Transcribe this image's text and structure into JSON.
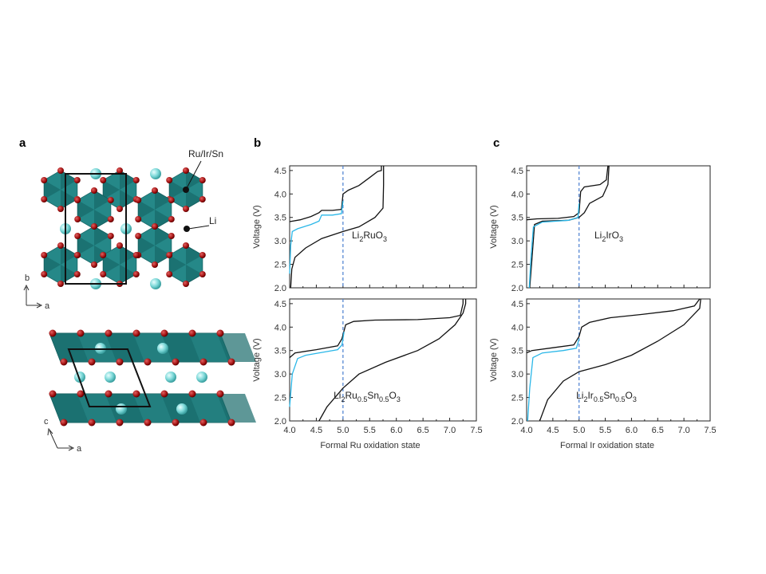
{
  "panels": {
    "a": {
      "label": "a",
      "atom_label_metal": "Ru/Ir/Sn",
      "atom_label_li": "Li",
      "axes_top": {
        "vertical": "b",
        "horizontal": "a"
      },
      "axes_bottom": {
        "vertical": "c",
        "horizontal": "a"
      }
    },
    "b": {
      "label": "b",
      "xlabel": "Formal Ru oxidation state"
    },
    "c": {
      "label": "c",
      "xlabel": "Formal Ir oxidation state"
    }
  },
  "colors": {
    "octahedron": "#1f7f7f",
    "octahedron_dark": "#155f5f",
    "li": "#79d6d6",
    "oxygen": "#a01010",
    "cyan_curve": "#2ab7e8",
    "dashed": "#4a7fd0"
  },
  "chart_data": [
    {
      "type": "line",
      "panel": "b",
      "subplot": "top",
      "title": "Li2RuO3",
      "compound": {
        "base": "Li",
        "sub1": "2",
        "mid": "RuO",
        "sub2": "3"
      },
      "ylabel": "Voltage (V)",
      "xlim": [
        4.0,
        7.5
      ],
      "ylim": [
        2.0,
        4.6
      ],
      "yticks": [
        2.0,
        2.5,
        3.0,
        3.5,
        4.0,
        4.5
      ],
      "vline_x": 5.0,
      "series": [
        {
          "color": "#111111",
          "points": [
            [
              4.0,
              3.41
            ],
            [
              4.2,
              3.45
            ],
            [
              4.4,
              3.52
            ],
            [
              4.55,
              3.6
            ],
            [
              4.6,
              3.65
            ],
            [
              4.8,
              3.65
            ],
            [
              4.97,
              3.67
            ],
            [
              5.0,
              4.0
            ],
            [
              5.1,
              4.08
            ],
            [
              5.3,
              4.18
            ],
            [
              5.5,
              4.35
            ],
            [
              5.65,
              4.48
            ],
            [
              5.72,
              4.5
            ],
            [
              5.72,
              4.6
            ]
          ]
        },
        {
          "color": "#111111",
          "points": [
            [
              4.02,
              2.0
            ],
            [
              4.04,
              2.4
            ],
            [
              4.1,
              2.65
            ],
            [
              4.3,
              2.85
            ],
            [
              4.6,
              3.05
            ],
            [
              5.0,
              3.2
            ],
            [
              5.3,
              3.3
            ],
            [
              5.6,
              3.5
            ],
            [
              5.75,
              3.7
            ],
            [
              5.76,
              4.2
            ],
            [
              5.76,
              4.6
            ]
          ]
        },
        {
          "color": "#2ab7e8",
          "points": [
            [
              4.0,
              2.3
            ],
            [
              4.02,
              2.9
            ],
            [
              4.05,
              3.2
            ],
            [
              4.15,
              3.26
            ],
            [
              4.4,
              3.35
            ],
            [
              4.55,
              3.42
            ],
            [
              4.6,
              3.55
            ],
            [
              4.8,
              3.55
            ],
            [
              4.97,
              3.58
            ],
            [
              5.0,
              3.85
            ]
          ]
        }
      ]
    },
    {
      "type": "line",
      "panel": "b",
      "subplot": "bottom",
      "title": "Li2Ru0.5Sn0.5O3",
      "compound": {
        "base": "Li",
        "sub1": "2",
        "mid": "Ru",
        "sub2": "0.5",
        "mid2": "Sn",
        "sub3": "0.5",
        "end": "O",
        "sub4": "3"
      },
      "ylabel": "Voltage (V)",
      "xlabel": "Formal Ru oxidation state",
      "xlim": [
        4.0,
        7.5
      ],
      "ylim": [
        2.0,
        4.6
      ],
      "xticks": [
        4.0,
        4.5,
        5.0,
        5.5,
        6.0,
        6.5,
        7.0,
        7.5
      ],
      "yticks": [
        2.0,
        2.5,
        3.0,
        3.5,
        4.0,
        4.5
      ],
      "vline_x": 5.0,
      "series": [
        {
          "color": "#111111",
          "points": [
            [
              4.0,
              3.35
            ],
            [
              4.1,
              3.45
            ],
            [
              4.5,
              3.52
            ],
            [
              4.9,
              3.6
            ],
            [
              4.98,
              3.75
            ],
            [
              5.05,
              4.05
            ],
            [
              5.2,
              4.12
            ],
            [
              5.6,
              4.15
            ],
            [
              6.4,
              4.16
            ],
            [
              7.0,
              4.2
            ],
            [
              7.2,
              4.25
            ],
            [
              7.25,
              4.5
            ],
            [
              7.25,
              4.6
            ]
          ]
        },
        {
          "color": "#111111",
          "points": [
            [
              4.55,
              2.0
            ],
            [
              4.7,
              2.3
            ],
            [
              5.0,
              2.7
            ],
            [
              5.3,
              3.0
            ],
            [
              5.8,
              3.25
            ],
            [
              6.4,
              3.5
            ],
            [
              6.8,
              3.75
            ],
            [
              7.1,
              4.05
            ],
            [
              7.25,
              4.3
            ],
            [
              7.3,
              4.5
            ],
            [
              7.3,
              4.6
            ]
          ]
        },
        {
          "color": "#2ab7e8",
          "points": [
            [
              4.0,
              2.3
            ],
            [
              4.05,
              3.0
            ],
            [
              4.15,
              3.33
            ],
            [
              4.3,
              3.4
            ],
            [
              4.6,
              3.46
            ],
            [
              4.9,
              3.52
            ],
            [
              4.98,
              3.62
            ],
            [
              5.02,
              3.9
            ]
          ]
        }
      ]
    },
    {
      "type": "line",
      "panel": "c",
      "subplot": "top",
      "title": "Li2IrO3",
      "compound": {
        "base": "Li",
        "sub1": "2",
        "mid": "IrO",
        "sub2": "3"
      },
      "ylabel": "Voltage (V)",
      "xlim": [
        4.0,
        7.5
      ],
      "ylim": [
        2.0,
        4.6
      ],
      "yticks": [
        2.0,
        2.5,
        3.0,
        3.5,
        4.0,
        4.5
      ],
      "vline_x": 5.0,
      "series": [
        {
          "color": "#111111",
          "points": [
            [
              4.0,
              3.45
            ],
            [
              4.2,
              3.47
            ],
            [
              4.6,
              3.48
            ],
            [
              4.9,
              3.52
            ],
            [
              5.0,
              3.6
            ],
            [
              5.03,
              4.05
            ],
            [
              5.1,
              4.15
            ],
            [
              5.4,
              4.2
            ],
            [
              5.52,
              4.3
            ],
            [
              5.55,
              4.6
            ]
          ]
        },
        {
          "color": "#111111",
          "points": [
            [
              4.06,
              2.0
            ],
            [
              4.1,
              2.6
            ],
            [
              4.15,
              3.35
            ],
            [
              4.3,
              3.42
            ],
            [
              4.8,
              3.44
            ],
            [
              5.0,
              3.5
            ],
            [
              5.1,
              3.6
            ],
            [
              5.2,
              3.8
            ],
            [
              5.45,
              3.95
            ],
            [
              5.55,
              4.2
            ],
            [
              5.57,
              4.6
            ]
          ]
        },
        {
          "color": "#2ab7e8",
          "points": [
            [
              4.05,
              2.0
            ],
            [
              4.08,
              2.6
            ],
            [
              4.13,
              3.3
            ],
            [
              4.3,
              3.4
            ],
            [
              4.8,
              3.44
            ],
            [
              4.98,
              3.5
            ],
            [
              5.0,
              3.8
            ]
          ]
        }
      ]
    },
    {
      "type": "line",
      "panel": "c",
      "subplot": "bottom",
      "title": "Li2Ir0.5Sn0.5O3",
      "compound": {
        "base": "Li",
        "sub1": "2",
        "mid": "Ir",
        "sub2": "0.5",
        "mid2": "Sn",
        "sub3": "0.5",
        "end": "O",
        "sub4": "3"
      },
      "ylabel": "Voltage (V)",
      "xlabel": "Formal Ir oxidation state",
      "xlim": [
        4.0,
        7.5
      ],
      "ylim": [
        2.0,
        4.6
      ],
      "xticks": [
        4.0,
        4.5,
        5.0,
        5.5,
        6.0,
        6.5,
        7.0,
        7.5
      ],
      "yticks": [
        2.0,
        2.5,
        3.0,
        3.5,
        4.0,
        4.5
      ],
      "vline_x": 5.0,
      "series": [
        {
          "color": "#111111",
          "points": [
            [
              4.0,
              3.45
            ],
            [
              4.1,
              3.5
            ],
            [
              4.5,
              3.56
            ],
            [
              4.9,
              3.62
            ],
            [
              5.0,
              3.8
            ],
            [
              5.05,
              4.0
            ],
            [
              5.2,
              4.1
            ],
            [
              5.6,
              4.2
            ],
            [
              6.2,
              4.27
            ],
            [
              6.8,
              4.35
            ],
            [
              7.2,
              4.45
            ],
            [
              7.3,
              4.6
            ]
          ]
        },
        {
          "color": "#111111",
          "points": [
            [
              4.25,
              2.0
            ],
            [
              4.4,
              2.45
            ],
            [
              4.7,
              2.85
            ],
            [
              5.0,
              3.05
            ],
            [
              5.5,
              3.2
            ],
            [
              6.0,
              3.4
            ],
            [
              6.5,
              3.7
            ],
            [
              7.0,
              4.05
            ],
            [
              7.3,
              4.4
            ],
            [
              7.32,
              4.6
            ]
          ]
        },
        {
          "color": "#2ab7e8",
          "points": [
            [
              4.02,
              2.0
            ],
            [
              4.06,
              2.7
            ],
            [
              4.12,
              3.35
            ],
            [
              4.3,
              3.45
            ],
            [
              4.7,
              3.5
            ],
            [
              4.95,
              3.55
            ],
            [
              5.0,
              3.75
            ]
          ]
        }
      ]
    }
  ]
}
